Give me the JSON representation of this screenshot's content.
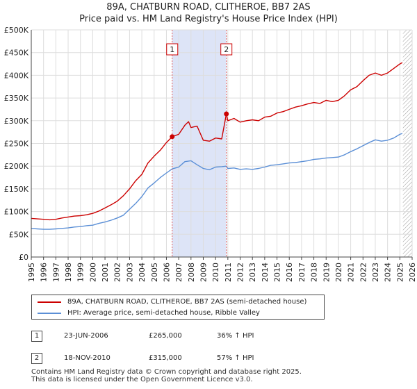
{
  "title_line1": "89A, CHATBURN ROAD, CLITHEROE, BB7 2AS",
  "title_line2": "Price paid vs. HM Land Registry's House Price Index (HPI)",
  "chart_data": {
    "type": "line",
    "title": "89A, CHATBURN ROAD, CLITHEROE, BB7 2AS — Price paid vs. HM Land Registry's House Price Index (HPI)",
    "xlim": [
      1995,
      2026
    ],
    "ylim": [
      0,
      500000
    ],
    "xticks": [
      "1995",
      "1996",
      "1997",
      "1998",
      "1999",
      "2000",
      "2001",
      "2002",
      "2003",
      "2004",
      "2005",
      "2006",
      "2007",
      "2008",
      "2009",
      "2010",
      "2011",
      "2012",
      "2013",
      "2014",
      "2015",
      "2016",
      "2017",
      "2018",
      "2019",
      "2020",
      "2021",
      "2022",
      "2023",
      "2024",
      "2025",
      "2026"
    ],
    "yticks": [
      {
        "v": 0,
        "label": "£0"
      },
      {
        "v": 50000,
        "label": "£50K"
      },
      {
        "v": 100000,
        "label": "£100K"
      },
      {
        "v": 150000,
        "label": "£150K"
      },
      {
        "v": 200000,
        "label": "£200K"
      },
      {
        "v": 250000,
        "label": "£250K"
      },
      {
        "v": 300000,
        "label": "£300K"
      },
      {
        "v": 350000,
        "label": "£350K"
      },
      {
        "v": 400000,
        "label": "£400K"
      },
      {
        "v": 450000,
        "label": "£450K"
      },
      {
        "v": 500000,
        "label": "£500K"
      }
    ],
    "shaded_region": {
      "x0": 2006.47,
      "x1": 2010.88,
      "color": "#dde4f7"
    },
    "future_hatch_from": 2025.25,
    "series": [
      {
        "name": "89A, CHATBURN ROAD, CLITHEROE, BB7 2AS (semi-detached house)",
        "color": "#cc0000",
        "points": [
          [
            1995,
            85000
          ],
          [
            1995.5,
            84000
          ],
          [
            1996,
            83000
          ],
          [
            1996.5,
            82000
          ],
          [
            1997,
            83000
          ],
          [
            1997.5,
            86000
          ],
          [
            1998,
            88000
          ],
          [
            1998.5,
            90000
          ],
          [
            1999,
            91000
          ],
          [
            1999.5,
            93000
          ],
          [
            2000,
            96000
          ],
          [
            2000.5,
            101000
          ],
          [
            2001,
            108000
          ],
          [
            2001.5,
            115000
          ],
          [
            2002,
            123000
          ],
          [
            2002.5,
            135000
          ],
          [
            2003,
            150000
          ],
          [
            2003.5,
            168000
          ],
          [
            2004,
            182000
          ],
          [
            2004.5,
            207000
          ],
          [
            2005,
            222000
          ],
          [
            2005.5,
            235000
          ],
          [
            2006,
            252000
          ],
          [
            2006.47,
            265000
          ],
          [
            2007,
            270000
          ],
          [
            2007.5,
            290000
          ],
          [
            2007.8,
            298000
          ],
          [
            2008,
            285000
          ],
          [
            2008.5,
            288000
          ],
          [
            2009,
            257000
          ],
          [
            2009.5,
            255000
          ],
          [
            2010,
            262000
          ],
          [
            2010.5,
            260000
          ],
          [
            2010.88,
            315000
          ],
          [
            2011,
            300000
          ],
          [
            2011.5,
            305000
          ],
          [
            2012,
            297000
          ],
          [
            2012.5,
            300000
          ],
          [
            2013,
            302000
          ],
          [
            2013.5,
            300000
          ],
          [
            2014,
            308000
          ],
          [
            2014.5,
            310000
          ],
          [
            2015,
            317000
          ],
          [
            2015.5,
            320000
          ],
          [
            2016,
            325000
          ],
          [
            2016.5,
            330000
          ],
          [
            2017,
            333000
          ],
          [
            2017.5,
            337000
          ],
          [
            2018,
            340000
          ],
          [
            2018.5,
            338000
          ],
          [
            2019,
            345000
          ],
          [
            2019.5,
            342000
          ],
          [
            2020,
            345000
          ],
          [
            2020.5,
            355000
          ],
          [
            2021,
            368000
          ],
          [
            2021.5,
            375000
          ],
          [
            2022,
            388000
          ],
          [
            2022.5,
            400000
          ],
          [
            2023,
            405000
          ],
          [
            2023.5,
            400000
          ],
          [
            2024,
            405000
          ],
          [
            2024.5,
            415000
          ],
          [
            2025,
            425000
          ],
          [
            2025.2,
            428000
          ]
        ]
      },
      {
        "name": "HPI: Average price, semi-detached house, Ribble Valley",
        "color": "#5b8fd6",
        "points": [
          [
            1995,
            63000
          ],
          [
            1995.5,
            62000
          ],
          [
            1996,
            61000
          ],
          [
            1996.5,
            61000
          ],
          [
            1997,
            62000
          ],
          [
            1997.5,
            63000
          ],
          [
            1998,
            64000
          ],
          [
            1998.5,
            66000
          ],
          [
            1999,
            67000
          ],
          [
            1999.5,
            69000
          ],
          [
            2000,
            70000
          ],
          [
            2000.5,
            74000
          ],
          [
            2001,
            77000
          ],
          [
            2001.5,
            81000
          ],
          [
            2002,
            86000
          ],
          [
            2002.5,
            92000
          ],
          [
            2003,
            105000
          ],
          [
            2003.5,
            118000
          ],
          [
            2004,
            133000
          ],
          [
            2004.5,
            152000
          ],
          [
            2005,
            163000
          ],
          [
            2005.5,
            175000
          ],
          [
            2006,
            185000
          ],
          [
            2006.47,
            194000
          ],
          [
            2007,
            198000
          ],
          [
            2007.5,
            210000
          ],
          [
            2008,
            212000
          ],
          [
            2008.5,
            203000
          ],
          [
            2009,
            195000
          ],
          [
            2009.5,
            192000
          ],
          [
            2010,
            198000
          ],
          [
            2010.5,
            199000
          ],
          [
            2010.88,
            200000
          ],
          [
            2011,
            195000
          ],
          [
            2011.5,
            196000
          ],
          [
            2012,
            193000
          ],
          [
            2012.5,
            194000
          ],
          [
            2013,
            193000
          ],
          [
            2013.5,
            195000
          ],
          [
            2014,
            198000
          ],
          [
            2014.5,
            202000
          ],
          [
            2015,
            203000
          ],
          [
            2015.5,
            205000
          ],
          [
            2016,
            207000
          ],
          [
            2016.5,
            208000
          ],
          [
            2017,
            210000
          ],
          [
            2017.5,
            212000
          ],
          [
            2018,
            215000
          ],
          [
            2018.5,
            216000
          ],
          [
            2019,
            218000
          ],
          [
            2019.5,
            219000
          ],
          [
            2020,
            220000
          ],
          [
            2020.5,
            225000
          ],
          [
            2021,
            232000
          ],
          [
            2021.5,
            238000
          ],
          [
            2022,
            245000
          ],
          [
            2022.5,
            252000
          ],
          [
            2023,
            258000
          ],
          [
            2023.5,
            255000
          ],
          [
            2024,
            257000
          ],
          [
            2024.5,
            262000
          ],
          [
            2025,
            270000
          ],
          [
            2025.2,
            272000
          ]
        ]
      }
    ],
    "transactions": [
      {
        "label": "1",
        "date": "23-JUN-2006",
        "x": 2006.47,
        "price": 265000,
        "price_text": "£265,000",
        "hpi_text": "36% ↑ HPI"
      },
      {
        "label": "2",
        "date": "18-NOV-2010",
        "x": 2010.88,
        "price": 315000,
        "price_text": "£315,000",
        "hpi_text": "57% ↑ HPI"
      }
    ]
  },
  "legend": {
    "price_line_label": "89A, CHATBURN ROAD, CLITHEROE, BB7 2AS (semi-detached house)",
    "hpi_line_label": "HPI: Average price, semi-detached house, Ribble Valley",
    "price_color": "#cc0000",
    "hpi_color": "#5b8fd6"
  },
  "table": [
    {
      "num": "1",
      "date": "23-JUN-2006",
      "price": "£265,000",
      "hpi": "36% ↑ HPI"
    },
    {
      "num": "2",
      "date": "18-NOV-2010",
      "price": "£315,000",
      "hpi": "57% ↑ HPI"
    }
  ],
  "footer": {
    "line1": "Contains HM Land Registry data © Crown copyright and database right 2025.",
    "line2": "This data is licensed under the Open Government Licence v3.0."
  }
}
